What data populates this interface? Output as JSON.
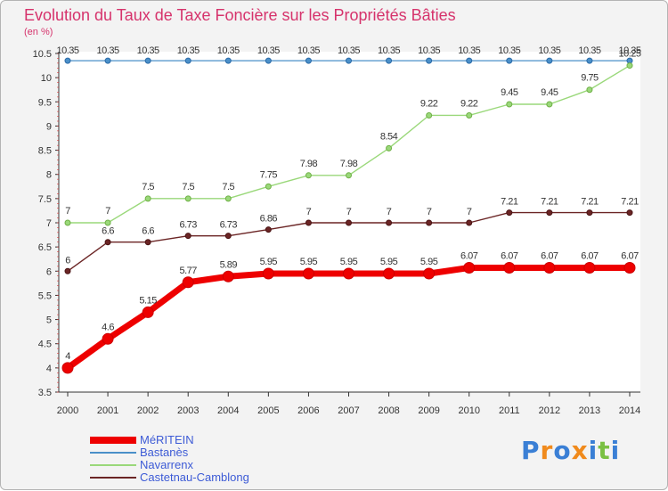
{
  "chart_data": {
    "type": "line",
    "title": "Evolution du Taux de Taxe Foncière sur les Propriétés Bâties",
    "subtitle": "(en %)",
    "xlabel": "",
    "ylabel": "",
    "ylim": [
      3.5,
      10.5
    ],
    "yticks": [
      "3.5",
      "4",
      "4.5",
      "5",
      "5.5",
      "6",
      "6.5",
      "7",
      "7.5",
      "8",
      "8.5",
      "9",
      "9.5",
      "10",
      "10.5"
    ],
    "x": [
      "2000",
      "2001",
      "2002",
      "2003",
      "2004",
      "2005",
      "2006",
      "2007",
      "2008",
      "2009",
      "2010",
      "2011",
      "2012",
      "2013",
      "2014"
    ],
    "grid": false,
    "legend_position": "bottom-left",
    "series": [
      {
        "name": "Bastanès",
        "color": "#4a8fc8",
        "values": [
          10.35,
          10.35,
          10.35,
          10.35,
          10.35,
          10.35,
          10.35,
          10.35,
          10.35,
          10.35,
          10.35,
          10.35,
          10.35,
          10.35,
          10.35
        ],
        "labels": [
          "10.35",
          "10.35",
          "10.35",
          "10.35",
          "10.35",
          "10.35",
          "10.35",
          "10.35",
          "10.35",
          "10.35",
          "10.35",
          "10.35",
          "10.35",
          "10.35",
          "10.35"
        ]
      },
      {
        "name": "Navarrenx",
        "color": "#9ad87a",
        "values": [
          7,
          7,
          7.5,
          7.5,
          7.5,
          7.75,
          7.98,
          7.98,
          8.54,
          9.22,
          9.22,
          9.45,
          9.45,
          9.75,
          10.25
        ],
        "labels": [
          "7",
          "7",
          "7.5",
          "7.5",
          "7.5",
          "7.75",
          "7.98",
          "7.98",
          "8.54",
          "9.22",
          "9.22",
          "9.45",
          "9.45",
          "9.75",
          "10.25"
        ]
      },
      {
        "name": "Castetnau-Camblong",
        "color": "#6b2525",
        "values": [
          6,
          6.6,
          6.6,
          6.73,
          6.73,
          6.86,
          7,
          7,
          7,
          7,
          7,
          7.21,
          7.21,
          7.21,
          7.21
        ],
        "labels": [
          "6",
          "6.6",
          "6.6",
          "6.73",
          "6.73",
          "6.86",
          "7",
          "7",
          "7",
          "7",
          "7",
          "7.21",
          "7.21",
          "7.21",
          "7.21"
        ]
      },
      {
        "name": "MéRITEIN",
        "color": "#ee0000",
        "values": [
          4,
          4.6,
          5.15,
          5.77,
          5.89,
          5.95,
          5.95,
          5.95,
          5.95,
          5.95,
          6.07,
          6.07,
          6.07,
          6.07,
          6.07
        ],
        "labels": [
          "4",
          "4.6",
          "5.15",
          "5.77",
          "5.89",
          "5.95",
          "5.95",
          "5.95",
          "5.95",
          "5.95",
          "6.07",
          "6.07",
          "6.07",
          "6.07",
          "6.07"
        ]
      }
    ],
    "legend": [
      {
        "name": "MéRITEIN",
        "color": "#ee0000"
      },
      {
        "name": "Bastanès",
        "color": "#4a8fc8"
      },
      {
        "name": "Navarrenx",
        "color": "#9ad87a"
      },
      {
        "name": "Castetnau-Camblong",
        "color": "#6b2525"
      }
    ]
  },
  "logo": {
    "letters": [
      "P",
      "r",
      "o",
      "x",
      "i",
      "t",
      "i"
    ],
    "colors": [
      "#3a7fd5",
      "#f08a1c",
      "#3a7fd5",
      "#f08a1c",
      "#3a7fd5",
      "#7ac043",
      "#3a7fd5"
    ]
  }
}
